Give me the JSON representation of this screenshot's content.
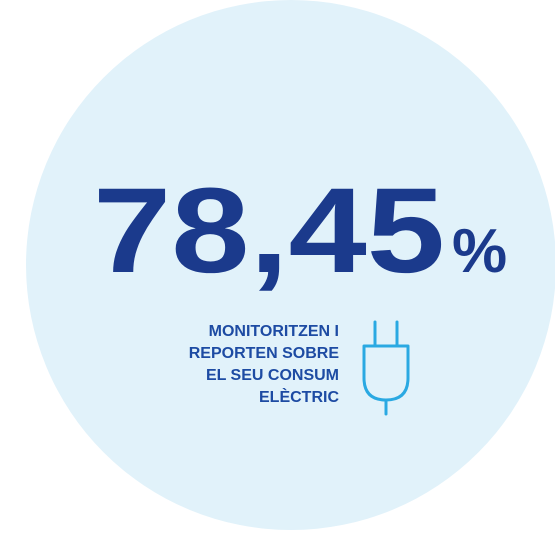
{
  "stat": {
    "value": "78,45",
    "unit": "%"
  },
  "caption": {
    "lines": [
      "MONITORITZEN I",
      "REPORTEN SOBRE",
      "EL SEU CONSUM",
      "ELÈCTRIC"
    ]
  }
}
